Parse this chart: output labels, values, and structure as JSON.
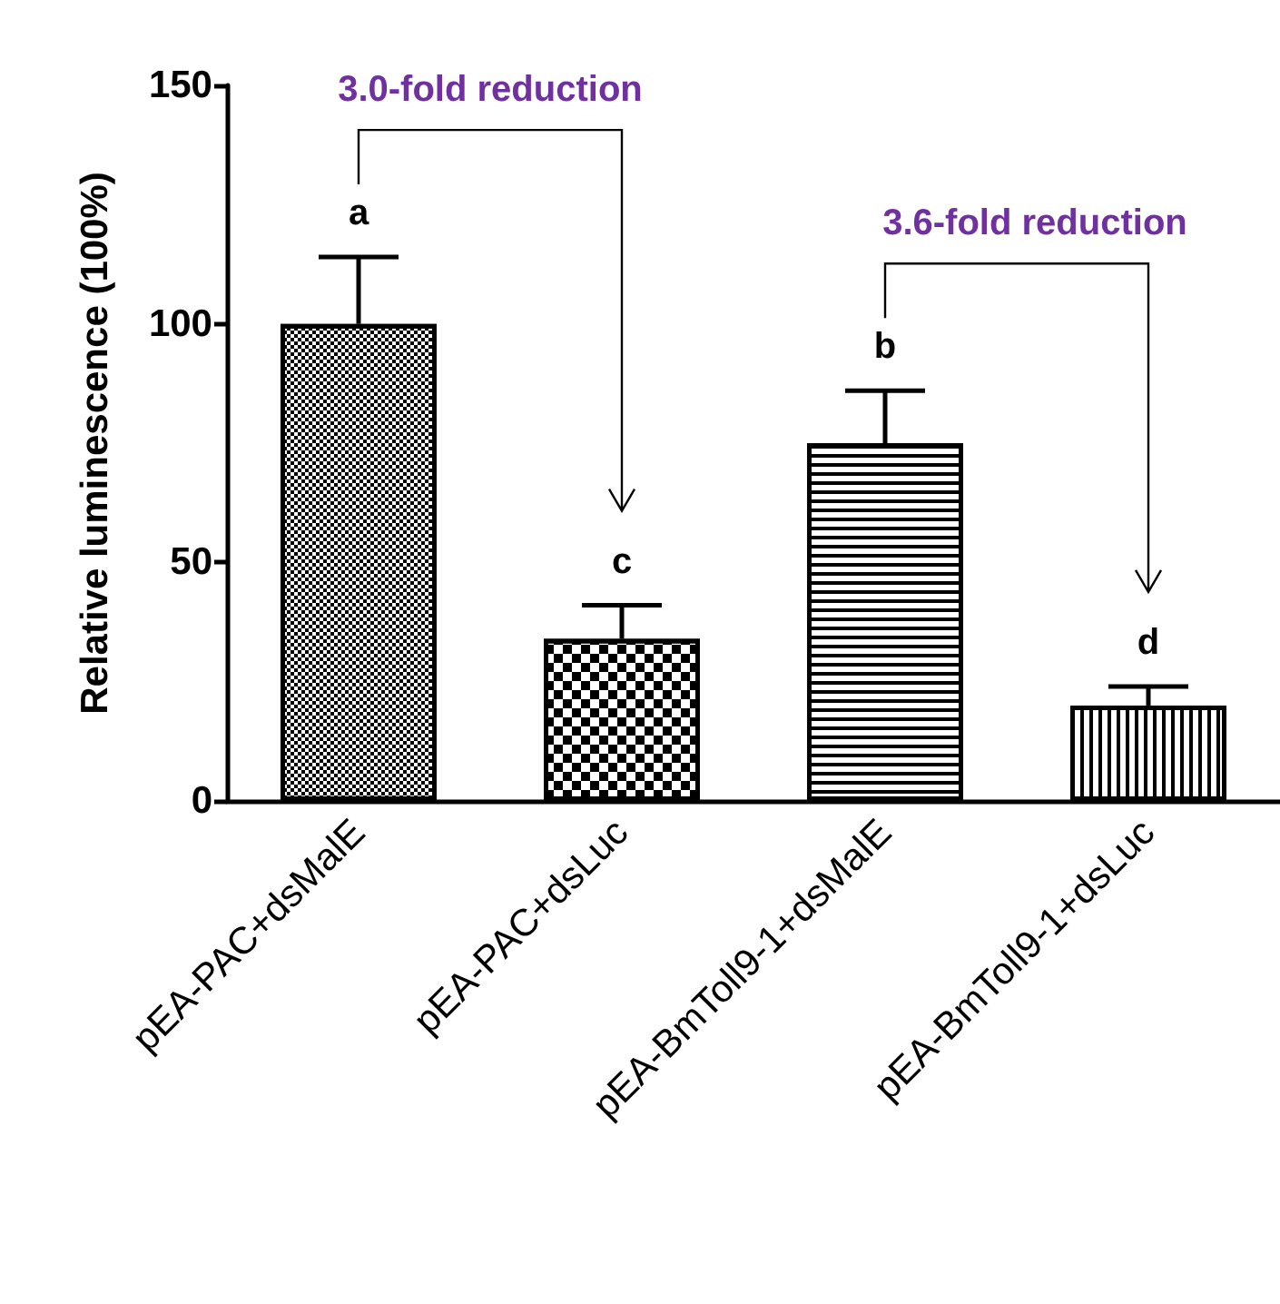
{
  "chart_data": {
    "type": "bar",
    "ylabel": "Relative luminescence (100%)",
    "categories": [
      "pEA-PAC+dsMalE",
      "pEA-PAC+dsLuc",
      "pEA-BmToll9-1+dsMalE",
      "pEA-BmToll9-1+dsLuc"
    ],
    "values": [
      100,
      34,
      75,
      20
    ],
    "errors": [
      [
        100,
        114
      ],
      [
        34,
        41
      ],
      [
        75,
        86
      ],
      [
        20,
        24
      ]
    ],
    "ylim": [
      0,
      150
    ],
    "yticks": [
      0,
      50,
      100,
      150
    ],
    "grid": false,
    "annotations": [
      "a",
      "c",
      "b",
      "d",
      "3.0-fold reduction",
      "3.6-fold reduction"
    ]
  }
}
